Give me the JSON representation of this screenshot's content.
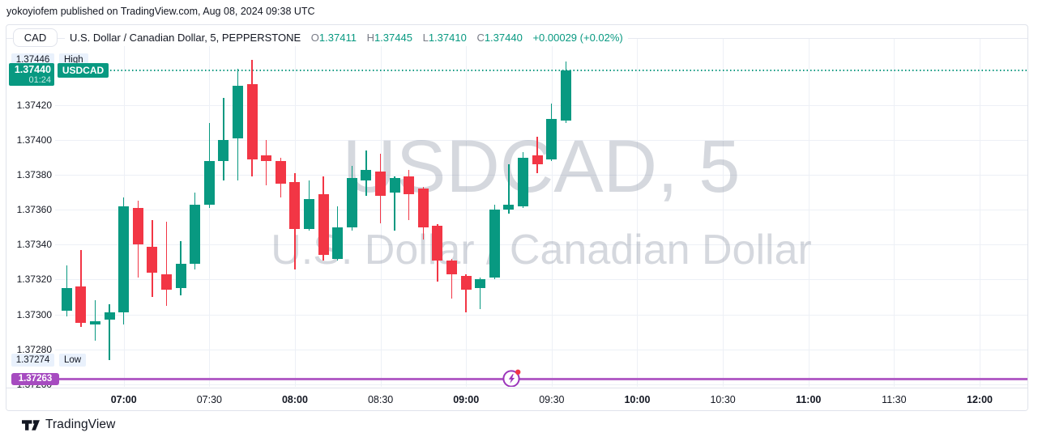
{
  "attribution": "yokoyiofem published on TradingView.com, Aug 08, 2024 09:38 UTC",
  "header": {
    "symbol_button": "CAD",
    "title": "U.S. Dollar / Canadian Dollar, 5, PEPPERSTONE",
    "ohlc": [
      {
        "label": "O",
        "value": "1.37411"
      },
      {
        "label": "H",
        "value": "1.37445"
      },
      {
        "label": "L",
        "value": "1.37410"
      },
      {
        "label": "C",
        "value": "1.37440"
      }
    ],
    "change": "+0.00029 (+0.02%)"
  },
  "watermark": {
    "line1": "USDCAD, 5",
    "line2": "U.S. Dollar / Canadian Dollar"
  },
  "markers": {
    "high": {
      "value": "1.37446",
      "label": "High"
    },
    "low": {
      "value": "1.37274",
      "label": "Low"
    },
    "last": {
      "value": "1.37440",
      "countdown": "01:24",
      "symbol": "USDCAD"
    },
    "alert": {
      "value": "1.37263"
    }
  },
  "price_axis": {
    "ticks": [
      "1.37420",
      "1.37400",
      "1.37380",
      "1.37360",
      "1.37340",
      "1.37320",
      "1.37300",
      "1.37280"
    ],
    "hidden_tick": "1.37260"
  },
  "time_axis": {
    "labels": [
      {
        "text": "07:00",
        "major": true
      },
      {
        "text": "07:30",
        "major": false
      },
      {
        "text": "08:00",
        "major": true
      },
      {
        "text": "08:30",
        "major": false
      },
      {
        "text": "09:00",
        "major": true
      },
      {
        "text": "09:30",
        "major": false
      },
      {
        "text": "10:00",
        "major": true
      },
      {
        "text": "10:30",
        "major": false
      },
      {
        "text": "11:00",
        "major": true
      },
      {
        "text": "11:30",
        "major": false
      },
      {
        "text": "12:00",
        "major": true
      }
    ]
  },
  "footer": {
    "brand": "TradingView"
  },
  "colors": {
    "up": "#089981",
    "down": "#F23645",
    "alert_badge": "#A64BC0",
    "alert_line": "#B25FC6",
    "badge_bg": "#E9F1FC",
    "text": "#131722",
    "muted": "#787B86",
    "grid": "#EDF0F6",
    "border": "#E0E3EB"
  },
  "chart_data": {
    "type": "candlestick",
    "title": "USDCAD, 5",
    "subtitle": "U.S. Dollar / Canadian Dollar",
    "exchange": "PEPPERSTONE",
    "interval_minutes": 5,
    "ylim": [
      1.372585,
      1.374585
    ],
    "grid": true,
    "session_high": 1.37446,
    "session_low": 1.37274,
    "last_price": 1.3744,
    "alert_price": 1.37263,
    "candles": [
      {
        "t": "06:40",
        "o": 1.37302,
        "h": 1.37328,
        "l": 1.37299,
        "c": 1.37315
      },
      {
        "t": "06:45",
        "o": 1.37316,
        "h": 1.37337,
        "l": 1.37293,
        "c": 1.37295
      },
      {
        "t": "06:50",
        "o": 1.37294,
        "h": 1.37308,
        "l": 1.37285,
        "c": 1.37296
      },
      {
        "t": "06:55",
        "o": 1.37297,
        "h": 1.37306,
        "l": 1.37274,
        "c": 1.37301
      },
      {
        "t": "07:00",
        "o": 1.37301,
        "h": 1.37367,
        "l": 1.37294,
        "c": 1.37362
      },
      {
        "t": "07:05",
        "o": 1.37361,
        "h": 1.37365,
        "l": 1.37321,
        "c": 1.3734
      },
      {
        "t": "07:10",
        "o": 1.37339,
        "h": 1.37354,
        "l": 1.3731,
        "c": 1.37324
      },
      {
        "t": "07:15",
        "o": 1.37323,
        "h": 1.37353,
        "l": 1.37305,
        "c": 1.37314
      },
      {
        "t": "07:20",
        "o": 1.37315,
        "h": 1.37342,
        "l": 1.37311,
        "c": 1.37329
      },
      {
        "t": "07:25",
        "o": 1.37329,
        "h": 1.3737,
        "l": 1.37326,
        "c": 1.37363
      },
      {
        "t": "07:30",
        "o": 1.37363,
        "h": 1.3741,
        "l": 1.37361,
        "c": 1.37388
      },
      {
        "t": "07:35",
        "o": 1.37388,
        "h": 1.37424,
        "l": 1.37377,
        "c": 1.374
      },
      {
        "t": "07:40",
        "o": 1.37401,
        "h": 1.37441,
        "l": 1.37377,
        "c": 1.37431
      },
      {
        "t": "07:45",
        "o": 1.37432,
        "h": 1.37446,
        "l": 1.37379,
        "c": 1.37389
      },
      {
        "t": "07:50",
        "o": 1.37391,
        "h": 1.374,
        "l": 1.37374,
        "c": 1.37388
      },
      {
        "t": "07:55",
        "o": 1.37388,
        "h": 1.3739,
        "l": 1.37367,
        "c": 1.37375
      },
      {
        "t": "08:00",
        "o": 1.37376,
        "h": 1.37381,
        "l": 1.37326,
        "c": 1.37349
      },
      {
        "t": "08:05",
        "o": 1.37349,
        "h": 1.37377,
        "l": 1.37348,
        "c": 1.37366
      },
      {
        "t": "08:10",
        "o": 1.37369,
        "h": 1.37379,
        "l": 1.37331,
        "c": 1.37334
      },
      {
        "t": "08:15",
        "o": 1.37332,
        "h": 1.37362,
        "l": 1.37331,
        "c": 1.3735
      },
      {
        "t": "08:20",
        "o": 1.3735,
        "h": 1.37385,
        "l": 1.37348,
        "c": 1.37378
      },
      {
        "t": "08:25",
        "o": 1.37377,
        "h": 1.37394,
        "l": 1.37368,
        "c": 1.37383
      },
      {
        "t": "08:30",
        "o": 1.37382,
        "h": 1.37392,
        "l": 1.37352,
        "c": 1.37368
      },
      {
        "t": "08:35",
        "o": 1.3737,
        "h": 1.37379,
        "l": 1.37348,
        "c": 1.37378
      },
      {
        "t": "08:40",
        "o": 1.37379,
        "h": 1.37383,
        "l": 1.37354,
        "c": 1.37369
      },
      {
        "t": "08:45",
        "o": 1.37372,
        "h": 1.37373,
        "l": 1.37343,
        "c": 1.3735
      },
      {
        "t": "08:50",
        "o": 1.37351,
        "h": 1.37352,
        "l": 1.37319,
        "c": 1.37331
      },
      {
        "t": "08:55",
        "o": 1.37331,
        "h": 1.37332,
        "l": 1.37309,
        "c": 1.37323
      },
      {
        "t": "09:00",
        "o": 1.37322,
        "h": 1.37323,
        "l": 1.37301,
        "c": 1.37314
      },
      {
        "t": "09:05",
        "o": 1.37315,
        "h": 1.37321,
        "l": 1.37303,
        "c": 1.3732
      },
      {
        "t": "09:10",
        "o": 1.37321,
        "h": 1.37363,
        "l": 1.3732,
        "c": 1.3736
      },
      {
        "t": "09:15",
        "o": 1.3736,
        "h": 1.37386,
        "l": 1.37358,
        "c": 1.37363
      },
      {
        "t": "09:20",
        "o": 1.37362,
        "h": 1.37393,
        "l": 1.37361,
        "c": 1.3739
      },
      {
        "t": "09:25",
        "o": 1.37391,
        "h": 1.37402,
        "l": 1.37381,
        "c": 1.37386
      },
      {
        "t": "09:30",
        "o": 1.37389,
        "h": 1.37421,
        "l": 1.37388,
        "c": 1.37412
      },
      {
        "t": "09:35",
        "o": 1.37411,
        "h": 1.37445,
        "l": 1.3741,
        "c": 1.3744
      }
    ]
  }
}
